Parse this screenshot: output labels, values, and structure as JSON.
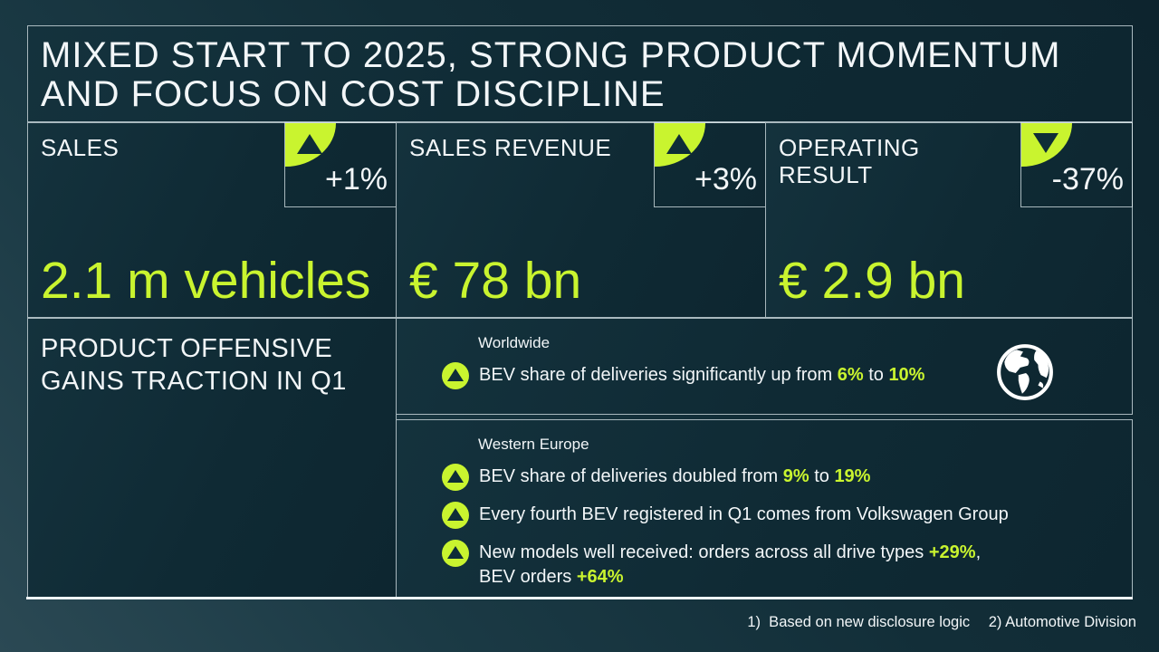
{
  "title": {
    "lines": [
      "MIXED START TO 2025, STRONG PRODUCT MOMENTUM",
      "AND FOCUS ON COST DISCIPLINE"
    ]
  },
  "kpis": [
    {
      "label": "SALES",
      "trend": "up",
      "change": "+1%",
      "value": "2.1 m vehicles"
    },
    {
      "label": "SALES REVENUE",
      "trend": "up",
      "change": "+3%",
      "value": "€ 78 bn"
    },
    {
      "label": "OPERATING RESULT",
      "trend": "down",
      "change": "-37%",
      "value": "€ 2.9 bn"
    }
  ],
  "product_section": {
    "heading_lines": [
      "PRODUCT OFFENSIVE",
      "GAINS TRACTION IN Q1"
    ],
    "worldwide": {
      "label": "Worldwide",
      "bullets": [
        [
          {
            "t": "BEV share of deliveries significantly up from "
          },
          {
            "t": "6%",
            "hl": true
          },
          {
            "t": " to "
          },
          {
            "t": "10%",
            "hl": true
          }
        ]
      ]
    },
    "western_europe": {
      "label": "Western Europe",
      "bullets": [
        [
          {
            "t": "BEV share of deliveries doubled from "
          },
          {
            "t": "9%",
            "hl": true
          },
          {
            "t": " to "
          },
          {
            "t": "19%",
            "hl": true
          }
        ],
        [
          {
            "t": "Every fourth BEV registered in Q1 comes from Volkswagen Group"
          }
        ],
        [
          {
            "t": "New models well received: orders across all drive types "
          },
          {
            "t": "+29%",
            "hl": true
          },
          {
            "t": ",",
            "br": true
          },
          {
            "t": "BEV orders "
          },
          {
            "t": "+64%",
            "hl": true
          }
        ]
      ]
    }
  },
  "footnotes": {
    "note1": "1)  Based on new disclosure logic",
    "note2": "2) Automotive Division"
  },
  "colors": {
    "accent_green": "#c9f42f",
    "triangle_dark": "#0e2d37",
    "text_white": "#f2f6f8"
  }
}
